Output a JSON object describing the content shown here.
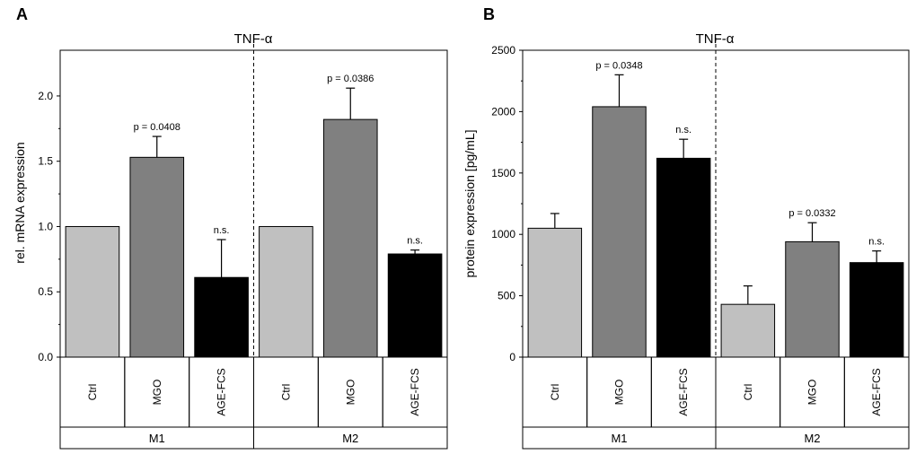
{
  "chart_data": [
    {
      "type": "bar",
      "panel_label": "A",
      "title": "TNF-α",
      "ylabel": "rel. mRNA expression",
      "xlabel": "",
      "ylim": [
        0,
        2.35
      ],
      "yticks": [
        0.0,
        0.5,
        1.0,
        1.5,
        2.0
      ],
      "ytick_labels": [
        "0.0",
        "0.5",
        "1.0",
        "1.5",
        "2.0"
      ],
      "categories": [
        "Ctrl",
        "MGO",
        "AGE-FCS",
        "Ctrl",
        "MGO",
        "AGE-FCS"
      ],
      "groups": [
        "M1",
        "M1",
        "M1",
        "M2",
        "M2",
        "M2"
      ],
      "group_labels": [
        "M1",
        "M2"
      ],
      "values": [
        1.0,
        1.53,
        0.61,
        1.0,
        1.82,
        0.79
      ],
      "errors": [
        0,
        0.16,
        0.29,
        0,
        0.24,
        0.03
      ],
      "bar_colors": [
        "#c0c0c0",
        "#808080",
        "#000000",
        "#c0c0c0",
        "#808080",
        "#000000"
      ],
      "annotations": [
        "",
        "p = 0.0408",
        "n.s.",
        "",
        "p = 0.0386",
        "n.s."
      ],
      "group_divider": "dashed line between M1 and M2"
    },
    {
      "type": "bar",
      "panel_label": "B",
      "title": "TNF-α",
      "ylabel": "protein expression [pg/mL]",
      "xlabel": "",
      "ylim": [
        0,
        2500
      ],
      "yticks": [
        0,
        500,
        1000,
        1500,
        2000,
        2500
      ],
      "ytick_labels": [
        "0",
        "500",
        "1000",
        "1500",
        "2000",
        "2500"
      ],
      "categories": [
        "Ctrl",
        "MGO",
        "AGE-FCS",
        "Ctrl",
        "MGO",
        "AGE-FCS"
      ],
      "groups": [
        "M1",
        "M1",
        "M1",
        "M2",
        "M2",
        "M2"
      ],
      "group_labels": [
        "M1",
        "M2"
      ],
      "values": [
        1050,
        2040,
        1620,
        430,
        940,
        770
      ],
      "errors": [
        120,
        260,
        155,
        150,
        155,
        95
      ],
      "bar_colors": [
        "#c0c0c0",
        "#808080",
        "#000000",
        "#c0c0c0",
        "#808080",
        "#000000"
      ],
      "annotations": [
        "",
        "p = 0.0348",
        "n.s.",
        "",
        "p = 0.0332",
        "n.s."
      ],
      "group_divider": "dashed line between M1 and M2"
    }
  ]
}
